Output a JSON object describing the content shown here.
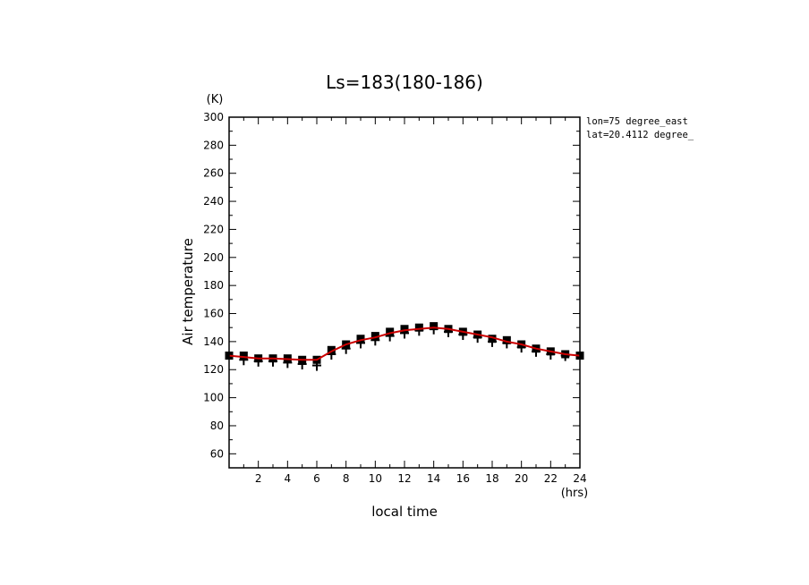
{
  "chart_data": {
    "type": "line",
    "title": "Ls=183(180-186)",
    "xlabel": "local time",
    "ylabel": "Air temperature",
    "x_unit": "(hrs)",
    "y_unit": "(K)",
    "xlim": [
      0,
      24
    ],
    "ylim": [
      50,
      300
    ],
    "x_ticks": [
      2,
      4,
      6,
      8,
      10,
      12,
      14,
      16,
      18,
      20,
      22,
      24
    ],
    "y_ticks": [
      60,
      80,
      100,
      120,
      140,
      160,
      180,
      200,
      220,
      240,
      260,
      280,
      300
    ],
    "grid": false,
    "annotations": [
      "lon=75 degree_east",
      "lat=20.4112 degree_"
    ],
    "series": [
      {
        "style": "line",
        "color": "#cc0000",
        "x": [
          0,
          1,
          2,
          3,
          4,
          5,
          6,
          7,
          8,
          9,
          10,
          11,
          12,
          13,
          14,
          15,
          16,
          17,
          18,
          19,
          20,
          21,
          22,
          23,
          24
        ],
        "values": [
          130,
          129,
          128,
          128,
          127.5,
          127,
          127,
          133,
          138,
          141,
          143,
          146,
          148,
          149,
          150,
          149,
          147,
          145,
          143,
          140,
          138,
          135,
          133,
          131,
          130
        ]
      },
      {
        "style": "square-markers",
        "color": "#000000",
        "x": [
          0,
          1,
          2,
          3,
          4,
          5,
          6,
          7,
          8,
          9,
          10,
          11,
          12,
          13,
          14,
          15,
          16,
          17,
          18,
          19,
          20,
          21,
          22,
          23,
          24
        ],
        "values": [
          130,
          130,
          128,
          128,
          128,
          127,
          127,
          134,
          138,
          142,
          144,
          147,
          149,
          150,
          151,
          149,
          147,
          145,
          142,
          141,
          138,
          135,
          133,
          131,
          130
        ]
      },
      {
        "style": "plus-markers",
        "color": "#000000",
        "x": [
          1,
          2,
          3,
          4,
          5,
          6,
          7,
          8,
          9,
          10,
          11,
          12,
          13,
          14,
          15,
          16,
          17,
          18,
          19,
          20,
          21,
          22,
          23
        ],
        "values": [
          127,
          126,
          126,
          125,
          124,
          123,
          131,
          135,
          139,
          141,
          144,
          146,
          148,
          149,
          147,
          145,
          143,
          140,
          139,
          136,
          133,
          131,
          130
        ]
      }
    ]
  }
}
